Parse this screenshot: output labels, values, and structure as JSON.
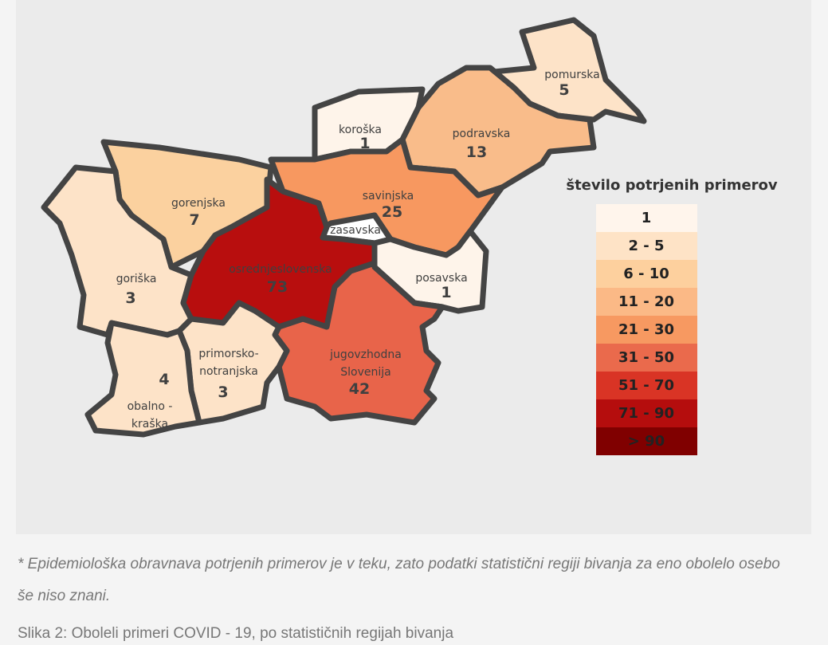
{
  "map": {
    "regions": [
      {
        "name": [
          "pomurska"
        ],
        "value": 5,
        "color": "#fde3c8"
      },
      {
        "name": [
          "koroška"
        ],
        "value": 1,
        "color": "#fef4ea"
      },
      {
        "name": [
          "podravska"
        ],
        "value": 13,
        "color": "#f9bc8a"
      },
      {
        "name": [
          "savinjska"
        ],
        "value": 25,
        "color": "#f79860"
      },
      {
        "name": [
          "zasavska"
        ],
        "color": "#ffffff"
      },
      {
        "name": [
          "gorenjska"
        ],
        "value": 7,
        "color": "#fbd19f"
      },
      {
        "name": [
          "goriška"
        ],
        "value": 3,
        "color": "#fde3c8"
      },
      {
        "name": [
          "osrednjeslovenska"
        ],
        "value": 73,
        "color": "#b80e0e"
      },
      {
        "name": [
          "posavska"
        ],
        "value": 1,
        "color": "#fef4ea"
      },
      {
        "name": [
          "jugovzhodna",
          "Slovenija"
        ],
        "value": 42,
        "color": "#e8644a"
      },
      {
        "name": [
          "primorsko-",
          "notranjska"
        ],
        "value": 3,
        "color": "#fde3c8"
      },
      {
        "name": [
          "obalno -",
          "kraška"
        ],
        "value": 4,
        "color": "#fde3c8"
      }
    ],
    "legend": {
      "title": "število potrjenih primerov",
      "items": [
        {
          "label": "1",
          "color": "#fff5ec"
        },
        {
          "label": "2 - 5",
          "color": "#fee3c6"
        },
        {
          "label": "6 - 10",
          "color": "#fdd09e"
        },
        {
          "label": "11 - 20",
          "color": "#fbb986"
        },
        {
          "label": "21 - 30",
          "color": "#f79961"
        },
        {
          "label": "31 - 50",
          "color": "#ea6a4c"
        },
        {
          "label": "51 - 70",
          "color": "#d93425"
        },
        {
          "label": "71 - 90",
          "color": "#b50d0d"
        },
        {
          "label": "> 90",
          "color": "#800000"
        }
      ]
    }
  },
  "footnote": "* Epidemiološka obravnava potrjenih primerov je v teku, zato podatki statistični regiji bivanja za eno obolelo osebo še niso znani.",
  "caption": "Slika 2: Oboleli primeri COVID - 19, po statističnih regijah bivanja"
}
